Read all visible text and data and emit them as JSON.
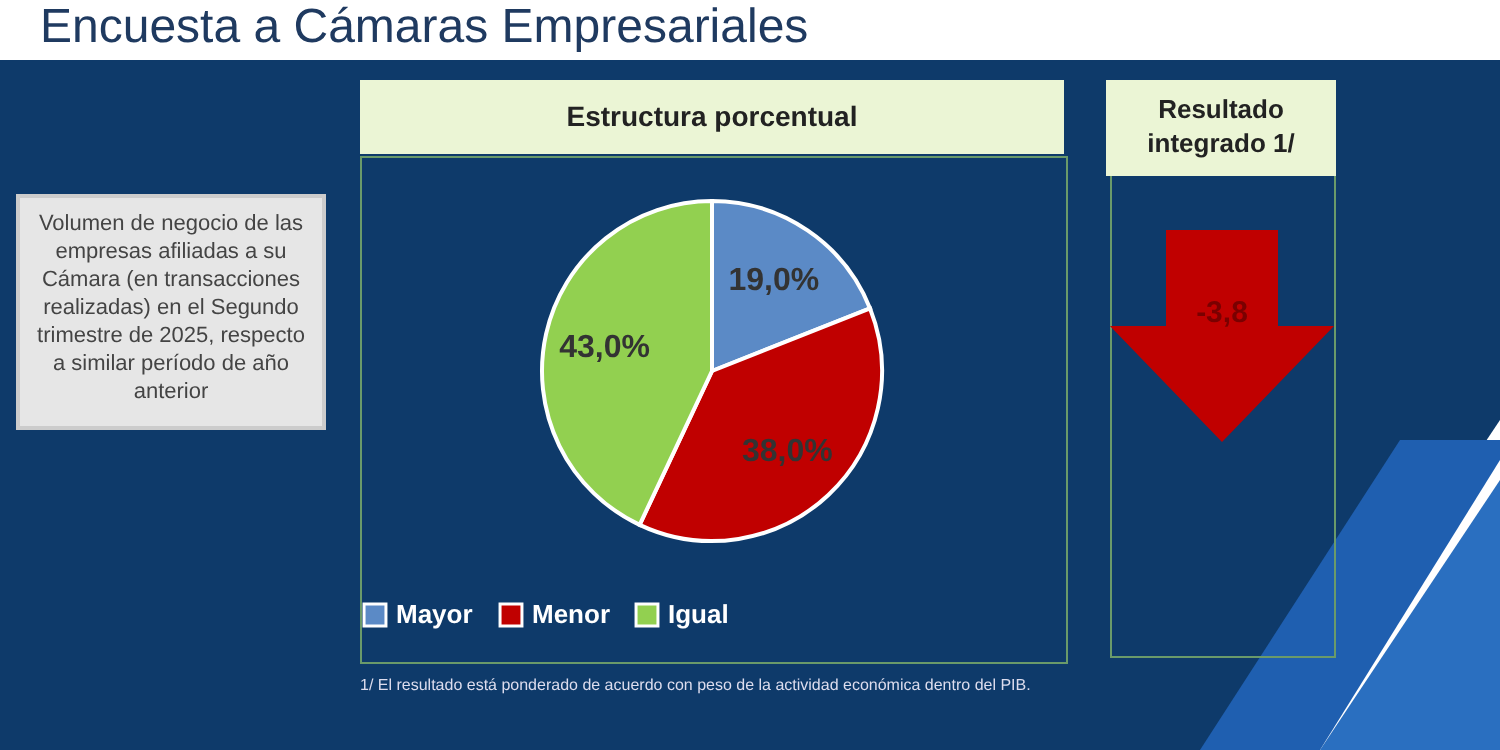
{
  "chart_data": {
    "type": "pie",
    "title": "Encuesta a Cámaras Empresariales",
    "subtitle": "Estructura porcentual",
    "categories": [
      "Mayor",
      "Menor",
      "Igual"
    ],
    "values": [
      19.0,
      38.0,
      43.0
    ],
    "colors": [
      "#5b8ac6",
      "#c00000",
      "#92d050"
    ],
    "value_labels": [
      "19,0%",
      "38,0%",
      "43,0%"
    ],
    "legend": "bottom",
    "annotations": [
      "Volumen de negocio de las empresas afiliadas a su Cámara (en transacciones realizadas) en el Segundo trimestre de 2025, respecto a similar período de año anterior",
      "Resultado integrado 1/",
      "-3,8",
      "1/ El resultado está ponderado de acuerdo con peso de la actividad económica dentro del PIB."
    ]
  }
}
